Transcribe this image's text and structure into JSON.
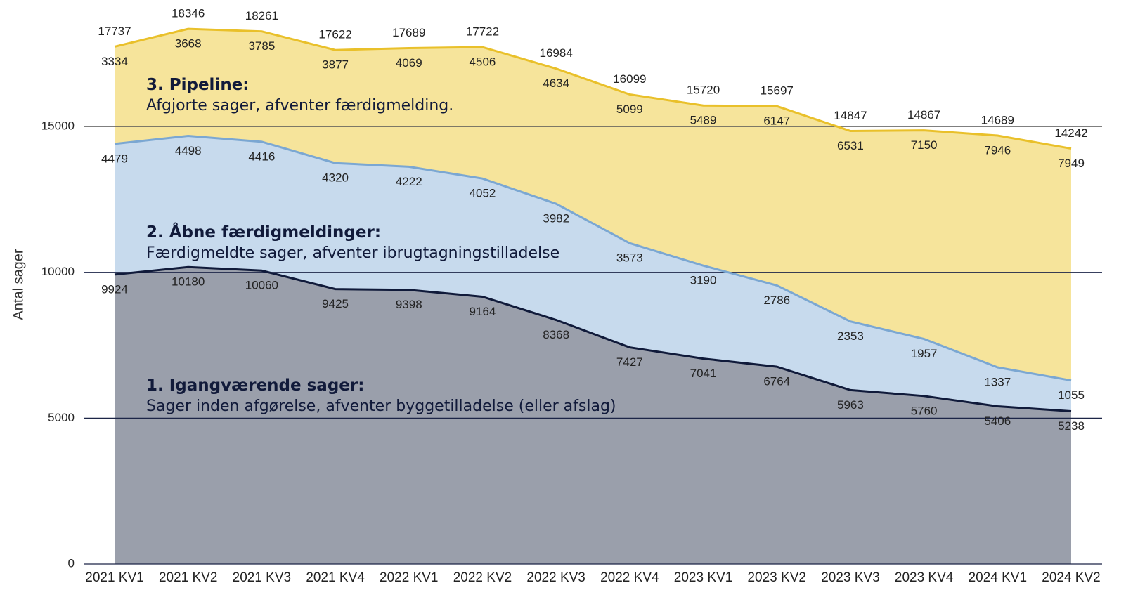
{
  "chart_data": {
    "type": "stacked_area",
    "y_label": "Antal sager",
    "categories": [
      "2021 KV1",
      "2021 KV2",
      "2021 KV3",
      "2021 KV4",
      "2022 KV1",
      "2022 KV2",
      "2022 KV3",
      "2022 KV4",
      "2023 KV1",
      "2023 KV2",
      "2023 KV3",
      "2023 KV4",
      "2024 KV1",
      "2024 KV2"
    ],
    "series": [
      {
        "name": "1. Igangværende sager:",
        "description": "Sager inden afgørelse, afventer byggetilladelse (eller afslag)",
        "color": "#9a9fab",
        "line_color": "#101a3a",
        "values": [
          9924,
          10180,
          10060,
          9425,
          9398,
          9164,
          8368,
          7427,
          7041,
          6764,
          5963,
          5760,
          5406,
          5238
        ]
      },
      {
        "name": "2. Åbne færdigmeldinger:",
        "description": "Færdigmeldte sager, afventer ibrugtagningstilladelse",
        "color": "#c7daed",
        "line_color": "#7ba7d2",
        "values": [
          4479,
          4498,
          4416,
          4320,
          4222,
          4052,
          3982,
          3573,
          3190,
          2786,
          2353,
          1957,
          1337,
          1055
        ]
      },
      {
        "name": "3. Pipeline:",
        "description": "Afgjorte sager, afventer færdigmelding.",
        "color": "#f6e49b",
        "line_color": "#e9c02a",
        "values": [
          3334,
          3668,
          3785,
          3877,
          4069,
          4506,
          4634,
          5099,
          5489,
          6147,
          6531,
          7150,
          7946,
          7949
        ]
      }
    ],
    "totals": [
      17737,
      18346,
      18261,
      17622,
      17689,
      17722,
      16984,
      16099,
      15720,
      15697,
      14847,
      14867,
      14689,
      14242
    ],
    "ylim": [
      0,
      19000
    ],
    "yticks": [
      0,
      5000,
      10000,
      15000
    ],
    "grid": true
  }
}
